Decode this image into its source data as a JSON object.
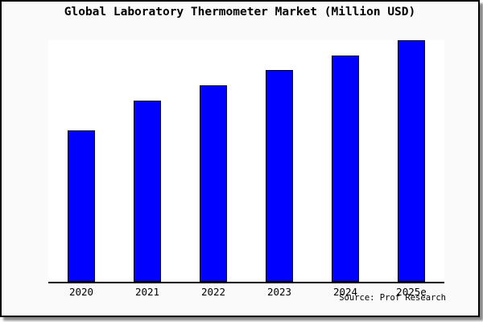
{
  "card": {
    "source_note": "Source: Prof Research"
  },
  "colors": {
    "bar_fill": "#0000ff",
    "bar_border": "#000000",
    "card_background": "#fafafa",
    "plot_background": "#ffffff",
    "axis": "#000000",
    "card_border": "#000000"
  },
  "chart_data": {
    "type": "bar",
    "title": "Global Laboratory Thermometer Market (Million USD)",
    "categories": [
      "2020",
      "2021",
      "2022",
      "2023",
      "2024",
      "2025e"
    ],
    "values": [
      188,
      225,
      244,
      263,
      281,
      300
    ],
    "xlabel": "",
    "ylabel": "",
    "ylim": [
      0,
      300
    ],
    "y_axis_tick_labels_visible": false,
    "grid": false,
    "legend": false,
    "annotation": "Source: Prof Research"
  }
}
